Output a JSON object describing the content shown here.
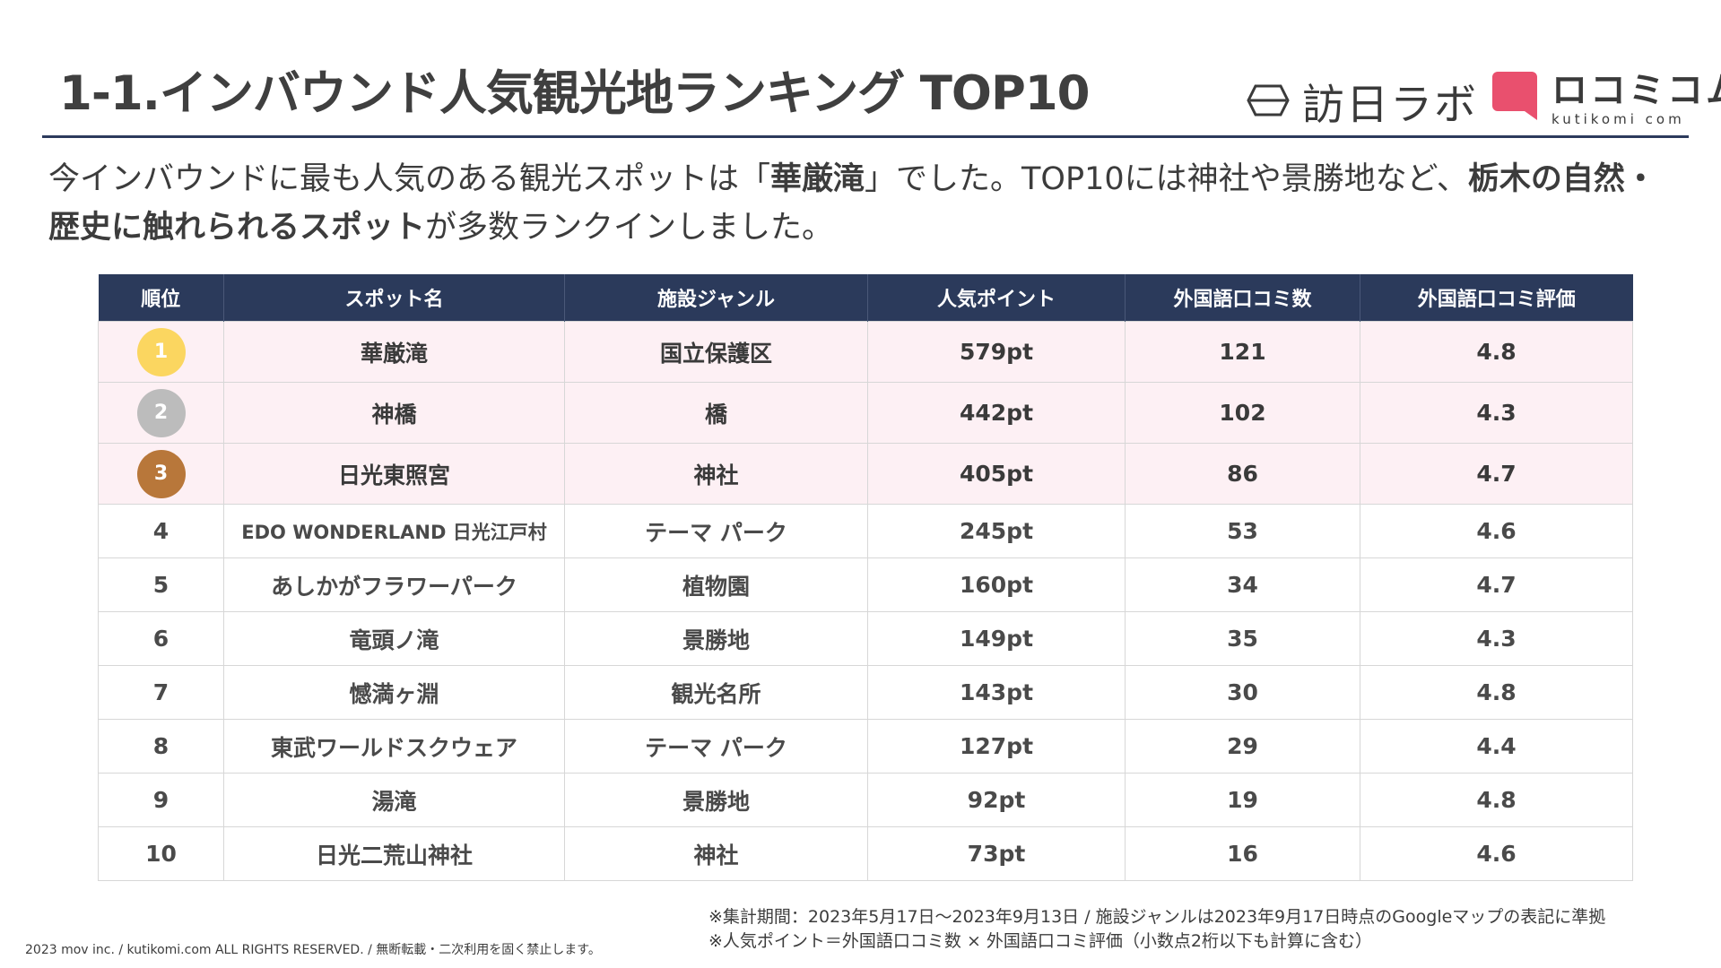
{
  "title": "1-1.インバウンド人気観光地ランキング TOP10",
  "logos": {
    "houmon": "訪日ラボ",
    "kutikomi_jp": "ロコミコム",
    "kutikomi_en": "kutikomi com"
  },
  "lead": {
    "p1": "今インバウンドに最も人気のある観光スポットは「",
    "b1": "華厳滝",
    "p2": "」でした。TOP10には神社や景勝地など、",
    "b2": "栃木の自然・歴史に触れられるスポット",
    "p3": "が多数ランクインしました。"
  },
  "colors": {
    "header_bg": "#2b3a5b",
    "top_row_bg": "#fdf0f4",
    "gold": "#fbd660",
    "silver": "#bcbcbc",
    "bronze": "#b8773a",
    "kutikomi_brand": "#e9506e"
  },
  "table": {
    "headers": [
      "順位",
      "スポット名",
      "施設ジャンル",
      "人気ポイント",
      "外国語口コミ数",
      "外国語口コミ評価"
    ],
    "rows": [
      {
        "rank": "1",
        "spot": "華厳滝",
        "genre": "国立保護区",
        "points": "579pt",
        "reviews": "121",
        "rating": "4.8"
      },
      {
        "rank": "2",
        "spot": "神橋",
        "genre": "橋",
        "points": "442pt",
        "reviews": "102",
        "rating": "4.3"
      },
      {
        "rank": "3",
        "spot": "日光東照宮",
        "genre": "神社",
        "points": "405pt",
        "reviews": "86",
        "rating": "4.7"
      },
      {
        "rank": "4",
        "spot": "EDO WONDERLAND 日光江戸村",
        "genre": "テーマ パーク",
        "points": "245pt",
        "reviews": "53",
        "rating": "4.6"
      },
      {
        "rank": "5",
        "spot": "あしかがフラワーパーク",
        "genre": "植物園",
        "points": "160pt",
        "reviews": "34",
        "rating": "4.7"
      },
      {
        "rank": "6",
        "spot": "竜頭ノ滝",
        "genre": "景勝地",
        "points": "149pt",
        "reviews": "35",
        "rating": "4.3"
      },
      {
        "rank": "7",
        "spot": "憾満ヶ淵",
        "genre": "観光名所",
        "points": "143pt",
        "reviews": "30",
        "rating": "4.8"
      },
      {
        "rank": "8",
        "spot": "東武ワールドスクウェア",
        "genre": "テーマ パーク",
        "points": "127pt",
        "reviews": "29",
        "rating": "4.4"
      },
      {
        "rank": "9",
        "spot": "湯滝",
        "genre": "景勝地",
        "points": "92pt",
        "reviews": "19",
        "rating": "4.8"
      },
      {
        "rank": "10",
        "spot": "日光二荒山神社",
        "genre": "神社",
        "points": "73pt",
        "reviews": "16",
        "rating": "4.6"
      }
    ]
  },
  "notes": [
    "※集計期間：2023年5月17日〜2023年9月13日 / 施設ジャンルは2023年9月17日時点のGoogleマップの表記に準拠",
    "※人気ポイント＝外国語口コミ数 × 外国語口コミ評価（小数点2桁以下も計算に含む）"
  ],
  "copyright": "2023 mov inc. / kutikomi.com ALL RIGHTS RESERVED. / 無断転載・二次利用を固く禁止します。"
}
